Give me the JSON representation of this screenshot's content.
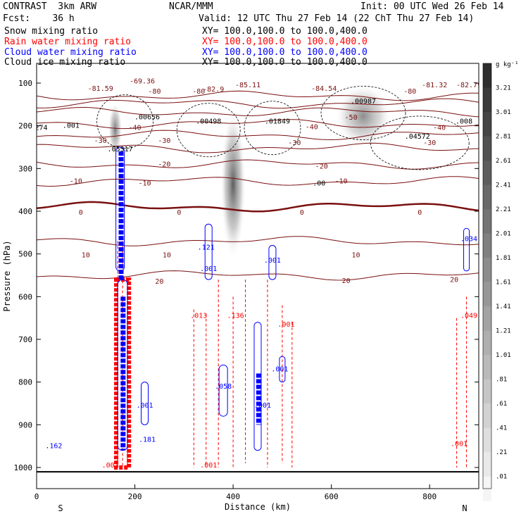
{
  "header": {
    "model": "CONTRAST  3km ARW",
    "org": "NCAR/MMM",
    "init": "Init: 00 UTC Wed 26 Feb 14",
    "fcst": "Fcst:    36 h",
    "valid": "Valid: 12 UTC Thu 27 Feb 14 (22 ChT Thu 27 Feb 14)"
  },
  "fields": [
    {
      "label": "Snow mixing ratio",
      "xy": "XY= 100.0,100.0 to 100.0,400.0",
      "color": "#000000"
    },
    {
      "label": "Rain water mixing ratio",
      "xy": "XY= 100.0,100.0 to 100.0,400.0",
      "color": "#ff0000"
    },
    {
      "label": "Cloud water mixing ratio",
      "xy": "XY= 100.0,100.0 to 100.0,400.0",
      "color": "#0000ff"
    },
    {
      "label": "Cloud ice mixing ratio",
      "xy": "XY= 100.0,100.0 to 100.0,400.0",
      "color": "#000000"
    }
  ],
  "chart_data": {
    "type": "heatmap",
    "description_fields": [
      "snow (shaded)",
      "rain (red dashed)",
      "cloud water (blue)",
      "cloud ice (black dashed)",
      "temperature (brown contours)"
    ],
    "xlabel": "Distance (km)",
    "ylabel": "Pressure (hPa)",
    "xlim": [
      0,
      900
    ],
    "ylim": [
      1050,
      50
    ],
    "xticks": [
      0,
      200,
      400,
      600,
      800
    ],
    "yticks": [
      100,
      200,
      300,
      400,
      500,
      600,
      700,
      800,
      900,
      1000
    ],
    "end_labels": {
      "left": "S",
      "right": "N"
    },
    "colorbar": {
      "unit": "g kg⁻¹",
      "levels": [
        "3.21",
        "3.01",
        "2.81",
        "2.61",
        "2.41",
        "2.21",
        "2.01",
        "1.81",
        "1.61",
        "1.41",
        "1.21",
        "1.01",
        ".81",
        ".61",
        ".41",
        ".21",
        ".01"
      ],
      "low_color": "#f4f4f4",
      "high_color": "#303030"
    },
    "temperature_contours": [
      {
        "value": -80,
        "p": 130
      },
      {
        "value": -70,
        "p": 148
      },
      {
        "value": -60,
        "p": 168
      },
      {
        "value": -50,
        "p": 195
      },
      {
        "value": -40,
        "p": 222
      },
      {
        "value": -30,
        "p": 252
      },
      {
        "value": -20,
        "p": 290
      },
      {
        "value": -10,
        "p": 330
      },
      {
        "value": 0,
        "p": 390
      },
      {
        "value": 10,
        "p": 470
      },
      {
        "value": 20,
        "p": 550
      }
    ],
    "temperature_labels": [
      {
        "text": "-81.59",
        "x": 130,
        "p": 118
      },
      {
        "text": "-69.36",
        "x": 215,
        "p": 101
      },
      {
        "text": "-82.9",
        "x": 360,
        "p": 120
      },
      {
        "text": "-80",
        "x": 330,
        "p": 125
      },
      {
        "text": "-80",
        "x": 240,
        "p": 125
      },
      {
        "text": "-85.11",
        "x": 430,
        "p": 110
      },
      {
        "text": "-84.54",
        "x": 585,
        "p": 118
      },
      {
        "text": "-80",
        "x": 760,
        "p": 125
      },
      {
        "text": "-81.32",
        "x": 810,
        "p": 110
      },
      {
        "text": "-82.79",
        "x": 880,
        "p": 110
      },
      {
        "text": "-50",
        "x": 640,
        "p": 186
      },
      {
        "text": "-40",
        "x": 200,
        "p": 210
      },
      {
        "text": "-40",
        "x": 560,
        "p": 208
      },
      {
        "text": "-40",
        "x": 820,
        "p": 210
      },
      {
        "text": "-30",
        "x": 130,
        "p": 240
      },
      {
        "text": "-30",
        "x": 260,
        "p": 240
      },
      {
        "text": "-30",
        "x": 525,
        "p": 245
      },
      {
        "text": "-30",
        "x": 800,
        "p": 245
      },
      {
        "text": "-20",
        "x": 260,
        "p": 295
      },
      {
        "text": "-20",
        "x": 580,
        "p": 300
      },
      {
        "text": "-10",
        "x": 80,
        "p": 335
      },
      {
        "text": "-10",
        "x": 220,
        "p": 340
      },
      {
        "text": "-10",
        "x": 620,
        "p": 335
      },
      {
        "text": "0",
        "x": 90,
        "p": 408
      },
      {
        "text": "0",
        "x": 290,
        "p": 408
      },
      {
        "text": "0",
        "x": 540,
        "p": 408
      },
      {
        "text": "0",
        "x": 780,
        "p": 408
      },
      {
        "text": "10",
        "x": 100,
        "p": 508
      },
      {
        "text": "10",
        "x": 265,
        "p": 508
      },
      {
        "text": "10",
        "x": 650,
        "p": 508
      },
      {
        "text": "20",
        "x": 250,
        "p": 570
      },
      {
        "text": "20",
        "x": 630,
        "p": 568
      },
      {
        "text": "20",
        "x": 850,
        "p": 566
      }
    ],
    "snow_columns": [
      {
        "x": 160,
        "p_top": 150,
        "p_bot": 280,
        "width": 10,
        "strength": 0.7
      },
      {
        "x": 400,
        "p_top": 180,
        "p_bot": 530,
        "width": 18,
        "strength": 0.85
      },
      {
        "x": 665,
        "p_top": 110,
        "p_bot": 260,
        "width": 40,
        "strength": 0.6
      }
    ],
    "cloud_water_max": [
      {
        "text": ".121",
        "x": 345,
        "p": 490
      },
      {
        "text": ".058",
        "x": 380,
        "p": 815
      },
      {
        "text": ".034",
        "x": 880,
        "p": 470
      },
      {
        "text": ".162",
        "x": 35,
        "p": 955
      },
      {
        "text": ".181",
        "x": 225,
        "p": 940
      },
      {
        "text": ".001",
        "x": 350,
        "p": 540
      },
      {
        "text": ".001",
        "x": 480,
        "p": 520
      },
      {
        "text": ".001",
        "x": 495,
        "p": 775
      },
      {
        "text": ".001",
        "x": 220,
        "p": 860
      },
      {
        "text": ".001",
        "x": 460,
        "p": 860
      }
    ],
    "rain_max": [
      {
        "text": ".013",
        "x": 330,
        "p": 650
      },
      {
        "text": ".136",
        "x": 405,
        "p": 650
      },
      {
        "text": ".049",
        "x": 880,
        "p": 650
      },
      {
        "text": ".001",
        "x": 508,
        "p": 670
      },
      {
        "text": ".001",
        "x": 860,
        "p": 950
      },
      {
        "text": ".001",
        "x": 150,
        "p": 1000
      },
      {
        "text": ".001",
        "x": 350,
        "p": 1000
      }
    ],
    "ice_max": [
      {
        "text": ".00656",
        "x": 225,
        "p": 185
      },
      {
        "text": ".00498",
        "x": 350,
        "p": 195
      },
      {
        "text": ".01849",
        "x": 490,
        "p": 195
      },
      {
        "text": ".00987",
        "x": 665,
        "p": 148
      },
      {
        "text": ".04572",
        "x": 775,
        "p": 230
      },
      {
        "text": ".00",
        "x": 575,
        "p": 340
      },
      {
        "text": ".008",
        "x": 870,
        "p": 195
      },
      {
        "text": ".001",
        "x": 70,
        "p": 205
      },
      {
        "text": ".274",
        "x": 5,
        "p": 210
      },
      {
        "text": ".05317",
        "x": 170,
        "p": 260
      }
    ]
  }
}
